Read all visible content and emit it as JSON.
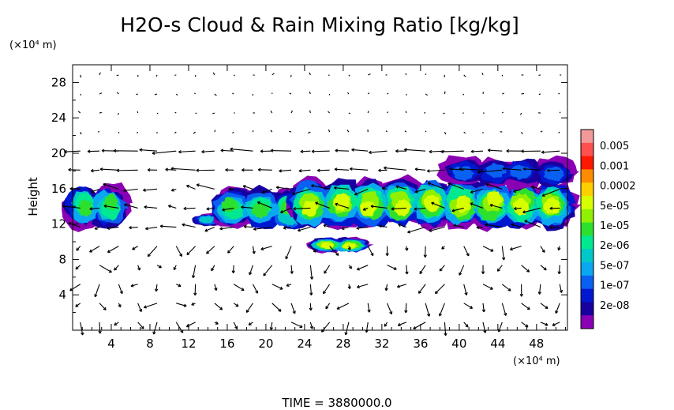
{
  "chart_data": {
    "type": "heatmap",
    "title": "H2O-s Cloud & Rain Mixing Ratio [kg/kg]",
    "xlabel": "",
    "ylabel": "Height",
    "x_unit": "(×10⁴ m)",
    "y_unit": "(×10⁴ m)",
    "x_ticks": [
      "4",
      "8",
      "12",
      "16",
      "20",
      "24",
      "28",
      "32",
      "36",
      "40",
      "44",
      "48"
    ],
    "y_ticks": [
      "4",
      "8",
      "12",
      "16",
      "20",
      "24",
      "28"
    ],
    "xlim": [
      0,
      51.2
    ],
    "ylim": [
      0,
      30
    ],
    "grid": false,
    "vectors": "wind vectors overlaid",
    "time_label": "TIME = 3880000.0",
    "colorbar": {
      "labels": [
        "0.005",
        "0.001",
        "0.0002",
        "5e-05",
        "1e-05",
        "2e-06",
        "5e-07",
        "1e-07",
        "2e-08"
      ],
      "colors": [
        "#f29a9a",
        "#ff5050",
        "#ff1800",
        "#ff8c00",
        "#ffd000",
        "#d8ff00",
        "#90f000",
        "#2ee02e",
        "#00e890",
        "#00c8c8",
        "#0aa8f0",
        "#0a60f0",
        "#0018d0",
        "#1800a0",
        "#8a00b4"
      ]
    },
    "cloud_regions": [
      {
        "x": [
          0,
          5
        ],
        "y": [
          12,
          16
        ],
        "peak": "1e-05"
      },
      {
        "x": [
          13,
          15
        ],
        "y": [
          12,
          13
        ],
        "peak": "2e-06"
      },
      {
        "x": [
          15,
          24
        ],
        "y": [
          11.8,
          15.6
        ],
        "peak": "1e-05"
      },
      {
        "x": [
          23,
          51.2
        ],
        "y": [
          12,
          16.5
        ],
        "peak": "5e-05"
      },
      {
        "x": [
          39,
          51.2
        ],
        "y": [
          16.5,
          19.2
        ],
        "peak": "5e-07"
      },
      {
        "x": [
          25,
          30
        ],
        "y": [
          9,
          10.2
        ],
        "peak": "5e-05"
      }
    ]
  }
}
